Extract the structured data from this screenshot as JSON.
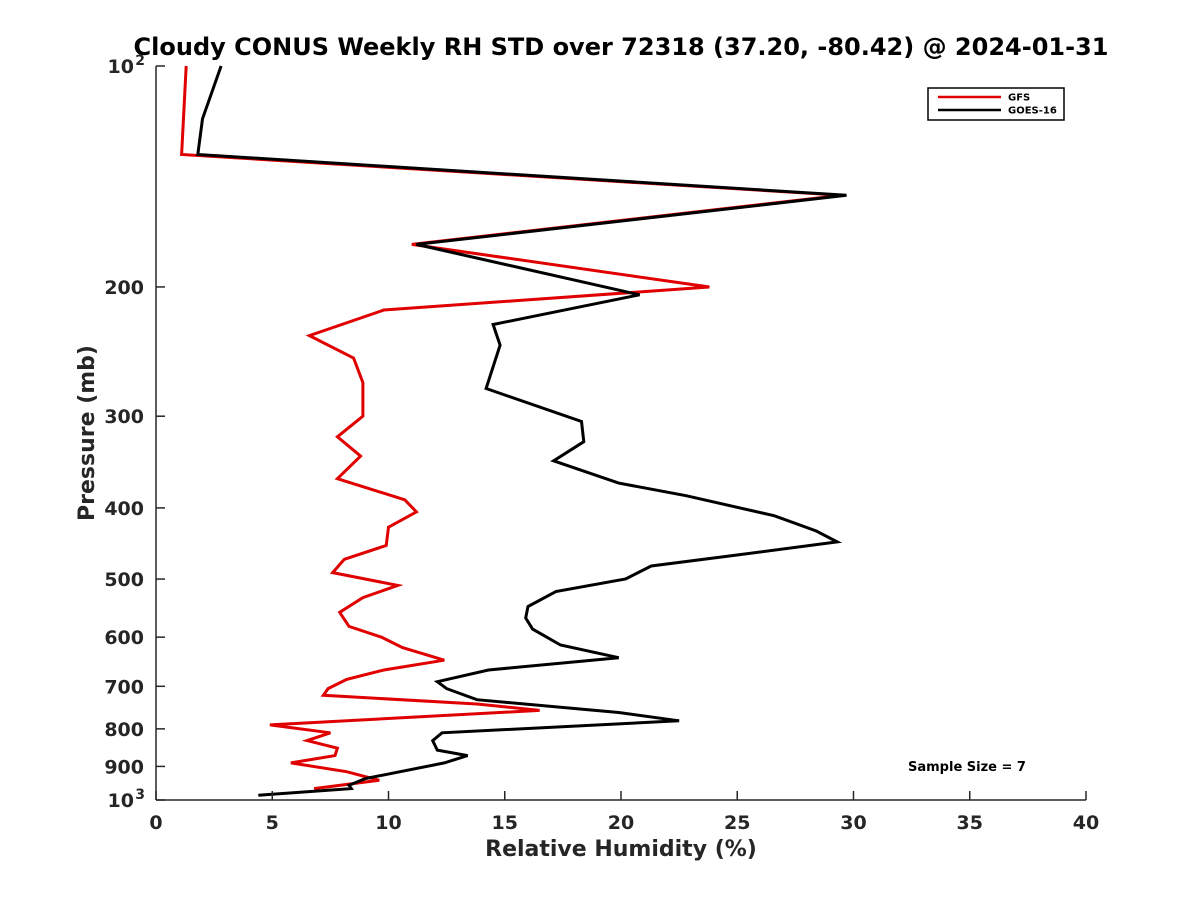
{
  "chart_data": {
    "type": "line",
    "title": "Cloudy CONUS Weekly RH STD over 72318 (37.20, -80.42) @ 2024-01-31",
    "xlabel": "Relative Humidity (%)",
    "ylabel": "Pressure (mb)",
    "xlim": [
      0,
      40
    ],
    "ylim": [
      100,
      1000
    ],
    "yscale": "log-reversed",
    "xticks": [
      "0",
      "5",
      "10",
      "15",
      "20",
      "25",
      "30",
      "35",
      "40"
    ],
    "yticks": [
      {
        "value": 100,
        "base": "10",
        "exp": "2"
      },
      {
        "value": 200,
        "label": "200"
      },
      {
        "value": 300,
        "label": "300"
      },
      {
        "value": 400,
        "label": "400"
      },
      {
        "value": 500,
        "label": "500"
      },
      {
        "value": 600,
        "label": "600"
      },
      {
        "value": 700,
        "label": "700"
      },
      {
        "value": 800,
        "label": "800"
      },
      {
        "value": 900,
        "label": "900"
      },
      {
        "value": 1000,
        "base": "10",
        "exp": "3"
      }
    ],
    "legend": {
      "position": "top-right",
      "entries": [
        "GFS",
        "GOES-16"
      ]
    },
    "annotation": "Sample Size = 7",
    "series": [
      {
        "name": "GFS",
        "color": "#e00000",
        "points": [
          [
            1.3,
            100
          ],
          [
            1.1,
            132
          ],
          [
            29.5,
            150
          ],
          [
            11.0,
            175
          ],
          [
            23.8,
            200
          ],
          [
            9.8,
            215
          ],
          [
            6.6,
            233
          ],
          [
            8.5,
            250
          ],
          [
            8.9,
            270
          ],
          [
            8.9,
            300
          ],
          [
            7.8,
            320
          ],
          [
            8.8,
            340
          ],
          [
            7.8,
            365
          ],
          [
            10.7,
            390
          ],
          [
            11.2,
            405
          ],
          [
            10.0,
            425
          ],
          [
            9.9,
            450
          ],
          [
            8.1,
            470
          ],
          [
            7.6,
            490
          ],
          [
            10.4,
            510
          ],
          [
            8.9,
            530
          ],
          [
            7.9,
            555
          ],
          [
            8.3,
            580
          ],
          [
            9.7,
            600
          ],
          [
            10.6,
            620
          ],
          [
            12.4,
            645
          ],
          [
            9.8,
            665
          ],
          [
            8.2,
            685
          ],
          [
            7.4,
            705
          ],
          [
            7.2,
            720
          ],
          [
            13.8,
            740
          ],
          [
            16.5,
            755
          ],
          [
            4.9,
            790
          ],
          [
            7.5,
            810
          ],
          [
            6.5,
            830
          ],
          [
            7.8,
            850
          ],
          [
            7.7,
            870
          ],
          [
            5.8,
            890
          ],
          [
            8.2,
            915
          ],
          [
            9.6,
            940
          ],
          [
            6.8,
            965
          ]
        ]
      },
      {
        "name": "GOES-16",
        "color": "#000000",
        "points": [
          [
            2.8,
            100
          ],
          [
            2.0,
            118
          ],
          [
            1.8,
            132
          ],
          [
            29.7,
            150
          ],
          [
            11.2,
            175
          ],
          [
            20.8,
            205
          ],
          [
            14.5,
            225
          ],
          [
            14.8,
            240
          ],
          [
            14.2,
            275
          ],
          [
            18.3,
            305
          ],
          [
            18.4,
            325
          ],
          [
            17.1,
            345
          ],
          [
            19.9,
            370
          ],
          [
            22.8,
            385
          ],
          [
            26.6,
            410
          ],
          [
            28.4,
            430
          ],
          [
            29.3,
            445
          ],
          [
            24.7,
            465
          ],
          [
            21.3,
            480
          ],
          [
            20.2,
            500
          ],
          [
            17.2,
            520
          ],
          [
            16.0,
            545
          ],
          [
            15.9,
            565
          ],
          [
            16.2,
            585
          ],
          [
            17.4,
            615
          ],
          [
            19.9,
            640
          ],
          [
            14.3,
            665
          ],
          [
            12.1,
            690
          ],
          [
            12.5,
            705
          ],
          [
            13.8,
            730
          ],
          [
            19.9,
            760
          ],
          [
            22.5,
            780
          ],
          [
            12.3,
            810
          ],
          [
            11.9,
            830
          ],
          [
            12.1,
            855
          ],
          [
            13.4,
            870
          ],
          [
            12.4,
            890
          ],
          [
            9.0,
            935
          ],
          [
            8.3,
            955
          ],
          [
            8.4,
            965
          ],
          [
            4.4,
            985
          ]
        ]
      }
    ]
  }
}
